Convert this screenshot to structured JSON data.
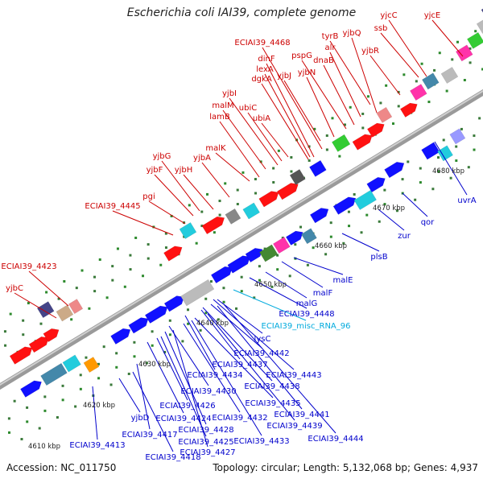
{
  "title": "Escherichia coli IAI39, complete genome",
  "footer": {
    "accession": "Accession: NC_011750",
    "summary": "Topology: circular; Length: 5,132,068 bp; Genes: 4,937"
  },
  "colors": {
    "forward_label": "#cc0000",
    "reverse_label": "#0000cc",
    "rna_label": "#00aadd",
    "backbone": "#888888"
  },
  "ticks": [
    {
      "label": "4610 kbp"
    },
    {
      "label": "4620 kbp"
    },
    {
      "label": "4630 kbp"
    },
    {
      "label": "4640 kbp"
    },
    {
      "label": "4650 kbp"
    },
    {
      "label": "4660 kbp"
    },
    {
      "label": "4670 kbp"
    },
    {
      "label": "4680 kbp"
    }
  ],
  "labels": [
    {
      "text": "yjcC",
      "strand": "forward"
    },
    {
      "text": "yjcE",
      "strand": "forward"
    },
    {
      "text": "ssb",
      "strand": "forward"
    },
    {
      "text": "ECIAI39_4468",
      "strand": "forward"
    },
    {
      "text": "yjbQ",
      "strand": "forward"
    },
    {
      "text": "tyrB",
      "strand": "forward"
    },
    {
      "text": "alr",
      "strand": "forward"
    },
    {
      "text": "yjbR",
      "strand": "forward"
    },
    {
      "text": "pspG",
      "strand": "forward"
    },
    {
      "text": "dnaB",
      "strand": "forward"
    },
    {
      "text": "dinF",
      "strand": "forward"
    },
    {
      "text": "lexA",
      "strand": "forward"
    },
    {
      "text": "dgkA",
      "strand": "forward"
    },
    {
      "text": "yjbJ",
      "strand": "forward"
    },
    {
      "text": "yjbN",
      "strand": "forward"
    },
    {
      "text": "yjbI",
      "strand": "forward"
    },
    {
      "text": "malM",
      "strand": "forward"
    },
    {
      "text": "ubiC",
      "strand": "forward"
    },
    {
      "text": "lamB",
      "strand": "forward"
    },
    {
      "text": "ubiA",
      "strand": "forward"
    },
    {
      "text": "malK",
      "strand": "forward"
    },
    {
      "text": "yjbG",
      "strand": "forward"
    },
    {
      "text": "yjbA",
      "strand": "forward"
    },
    {
      "text": "yjbF",
      "strand": "forward"
    },
    {
      "text": "yjbH",
      "strand": "forward"
    },
    {
      "text": "pgi",
      "strand": "forward"
    },
    {
      "text": "ECIAI39_4445",
      "strand": "forward"
    },
    {
      "text": "ECIAI39_4423",
      "strand": "forward"
    },
    {
      "text": "yjbC",
      "strand": "forward"
    },
    {
      "text": "uvrA",
      "strand": "reverse"
    },
    {
      "text": "qor",
      "strand": "reverse"
    },
    {
      "text": "zur",
      "strand": "reverse"
    },
    {
      "text": "plsB",
      "strand": "reverse"
    },
    {
      "text": "malE",
      "strand": "reverse"
    },
    {
      "text": "malF",
      "strand": "reverse"
    },
    {
      "text": "malG",
      "strand": "reverse"
    },
    {
      "text": "ECIAI39_4448",
      "strand": "reverse"
    },
    {
      "text": "ECIAI39_misc_RNA_96",
      "strand": "rna"
    },
    {
      "text": "lysC",
      "strand": "reverse"
    },
    {
      "text": "ECIAI39_4442",
      "strand": "reverse"
    },
    {
      "text": "ECIAI39_4437",
      "strand": "reverse"
    },
    {
      "text": "ECIAI39_4434",
      "strand": "reverse"
    },
    {
      "text": "ECIAI39_4443",
      "strand": "reverse"
    },
    {
      "text": "ECIAI39_4438",
      "strand": "reverse"
    },
    {
      "text": "ECIAI39_4430",
      "strand": "reverse"
    },
    {
      "text": "ECIAI39_4435",
      "strand": "reverse"
    },
    {
      "text": "ECIAI39_4426",
      "strand": "reverse"
    },
    {
      "text": "ECIAI39_4432",
      "strand": "reverse"
    },
    {
      "text": "ECIAI39_4441",
      "strand": "reverse"
    },
    {
      "text": "ECIAI39_4424",
      "strand": "reverse"
    },
    {
      "text": "ECIAI39_4428",
      "strand": "reverse"
    },
    {
      "text": "ECIAI39_4439",
      "strand": "reverse"
    },
    {
      "text": "yjbD",
      "strand": "reverse"
    },
    {
      "text": "ECIAI39_4417",
      "strand": "reverse"
    },
    {
      "text": "ECIAI39_4425",
      "strand": "reverse"
    },
    {
      "text": "ECIAI39_4433",
      "strand": "reverse"
    },
    {
      "text": "ECIAI39_4444",
      "strand": "reverse"
    },
    {
      "text": "ECIAI39_4413",
      "strand": "reverse"
    },
    {
      "text": "ECIAI39_4427",
      "strand": "reverse"
    },
    {
      "text": "ECIAI39_4418",
      "strand": "reverse"
    }
  ]
}
